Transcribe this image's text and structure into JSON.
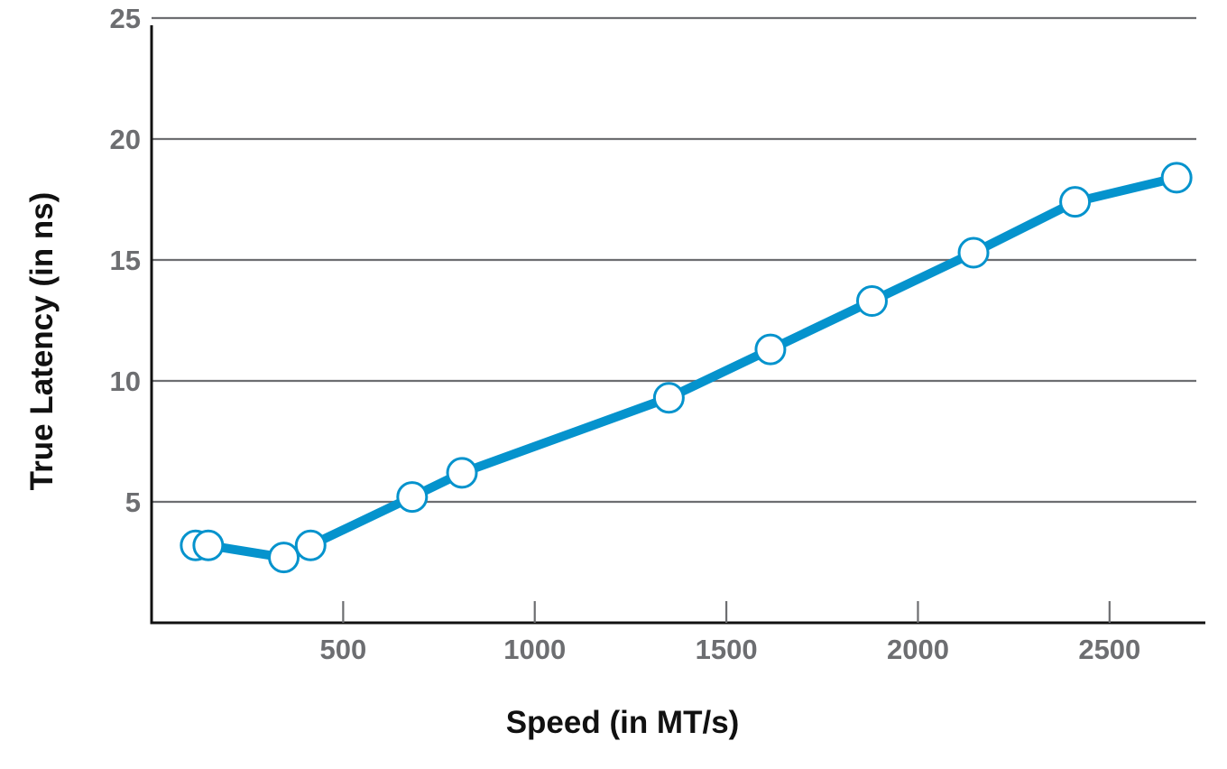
{
  "chart_data": {
    "type": "line",
    "title": "",
    "xlabel": "Speed (in MT/s)",
    "ylabel": "True Latency (in ns)",
    "xlim": [
      0,
      2750
    ],
    "ylim": [
      0,
      25
    ],
    "x_ticks": [
      500,
      1000,
      1500,
      2000,
      2500
    ],
    "y_ticks": [
      5,
      10,
      15,
      20,
      25
    ],
    "grid": true,
    "legend": "none",
    "colors": {
      "line": "#0593cd",
      "marker_fill": "#ffffff",
      "grid": "#6d6e71",
      "axis": "#111111",
      "tick_text": "#6d6e71",
      "title_text": "#111111"
    },
    "series": [
      {
        "x": [
          115,
          148,
          345,
          415,
          680,
          810,
          1350,
          1615,
          1880,
          2145,
          2410,
          2675
        ],
        "values": [
          3.2,
          3.2,
          2.7,
          3.2,
          5.2,
          6.2,
          9.3,
          11.3,
          13.3,
          15.3,
          17.4,
          18.4
        ]
      }
    ]
  }
}
